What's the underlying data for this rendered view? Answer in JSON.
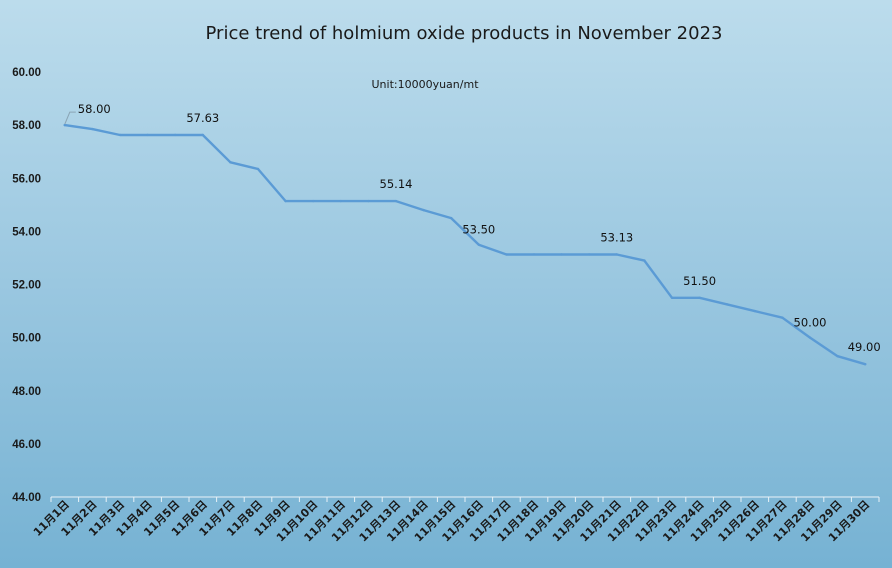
{
  "chart_data": {
    "type": "line",
    "title": "Price trend of holmium oxide products in November 2023",
    "unit_label": "Unit:10000yuan/mt",
    "x": [
      "11月1日",
      "11月2日",
      "11月3日",
      "11月4日",
      "11月5日",
      "11月6日",
      "11月7日",
      "11月8日",
      "11月9日",
      "11月10日",
      "11月11日",
      "11月12日",
      "11月13日",
      "11月14日",
      "11月15日",
      "11月16日",
      "11月17日",
      "11月18日",
      "11月19日",
      "11月20日",
      "11月21日",
      "11月22日",
      "11月23日",
      "11月24日",
      "11月25日",
      "11月26日",
      "11月27日",
      "11月28日",
      "11月29日",
      "11月30日"
    ],
    "series": [
      {
        "values": [
          58.0,
          57.85,
          57.63,
          57.63,
          57.63,
          57.63,
          56.6,
          56.35,
          55.14,
          55.14,
          55.14,
          55.14,
          55.14,
          54.8,
          54.5,
          53.5,
          53.13,
          53.13,
          53.13,
          53.13,
          53.13,
          52.9,
          51.5,
          51.5,
          51.25,
          51.0,
          50.75,
          50.0,
          49.3,
          49.0
        ],
        "color": "#5b9bd5"
      }
    ],
    "data_labels": [
      {
        "index": 0,
        "text": "58.00"
      },
      {
        "index": 5,
        "text": "57.63"
      },
      {
        "index": 12,
        "text": "55.14"
      },
      {
        "index": 15,
        "text": "53.50"
      },
      {
        "index": 20,
        "text": "53.13"
      },
      {
        "index": 23,
        "text": "51.50"
      },
      {
        "index": 27,
        "text": "50.00"
      },
      {
        "index": 29,
        "text": "49.00"
      }
    ],
    "ylim": [
      44,
      60
    ],
    "yticks": [
      "44.00",
      "46.00",
      "48.00",
      "50.00",
      "52.00",
      "54.00",
      "56.00",
      "58.00",
      "60.00"
    ],
    "grid": false,
    "legend": "none"
  }
}
